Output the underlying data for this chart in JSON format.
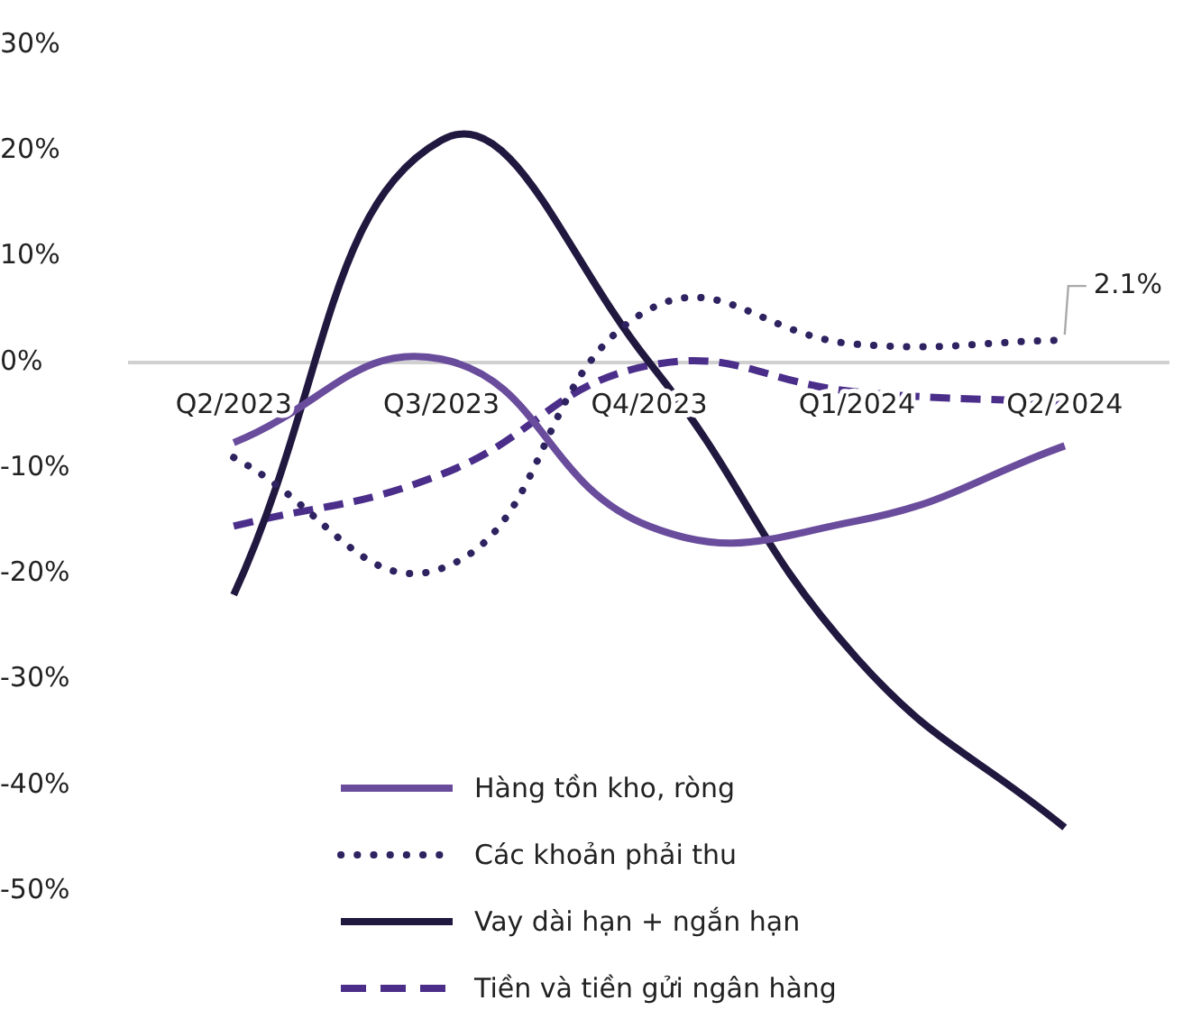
{
  "chart_data": {
    "type": "line",
    "categories": [
      "Q2/2023",
      "Q3/2023",
      "Q4/2023",
      "Q1/2024",
      "Q2/2024"
    ],
    "series": [
      {
        "name": "Hàng tồn kho, ròng",
        "color": "#6a4c9c",
        "line_style": "solid",
        "values": [
          -7.6,
          0.3,
          -15.5,
          -15,
          -7.9
        ]
      },
      {
        "name": "Các khoản phải thu",
        "color": "#2e2260",
        "line_style": "dotted",
        "values": [
          -9,
          -19.5,
          5,
          1.7,
          2.1
        ]
      },
      {
        "name": "Vay dài hạn + ngắn hạn",
        "color": "#21183f",
        "line_style": "solid",
        "values": [
          -22,
          21,
          0,
          -28,
          -44
        ]
      },
      {
        "name": "Tiền và tiền gửi ngân hàng",
        "color": "#4b2e8a",
        "line_style": "dashed",
        "values": [
          -15.5,
          -10.6,
          -0.3,
          -2.8,
          -3.8
        ]
      }
    ],
    "ylim": [
      -50,
      30
    ],
    "yticks": [
      {
        "value": -50,
        "label": "-50%"
      },
      {
        "value": -40,
        "label": "-40%"
      },
      {
        "value": -30,
        "label": "-30%"
      },
      {
        "value": -20,
        "label": "-20%"
      },
      {
        "value": -10,
        "label": "-10%"
      },
      {
        "value": 0,
        "label": "0%"
      },
      {
        "value": 10,
        "label": "10%"
      },
      {
        "value": 20,
        "label": "20%"
      },
      {
        "value": 30,
        "label": "30%"
      }
    ],
    "grid": false,
    "legend": "bottom",
    "marker": "none",
    "annotations": [
      {
        "text": "2.1%",
        "x": "Q2/2024",
        "y": 2.1
      }
    ]
  }
}
